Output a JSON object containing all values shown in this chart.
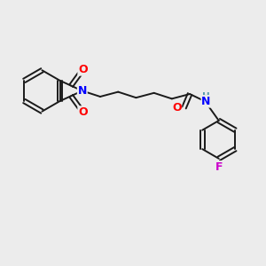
{
  "bg": "#ececec",
  "bc": "#1a1a1a",
  "Nc": "#0000ff",
  "Oc": "#ff0000",
  "Fc": "#cc00cc",
  "Hc": "#5599aa",
  "lw": 1.4,
  "figsize": [
    3.0,
    3.0
  ],
  "dpi": 100,
  "xlim": [
    0,
    10
  ],
  "ylim": [
    0,
    10
  ]
}
